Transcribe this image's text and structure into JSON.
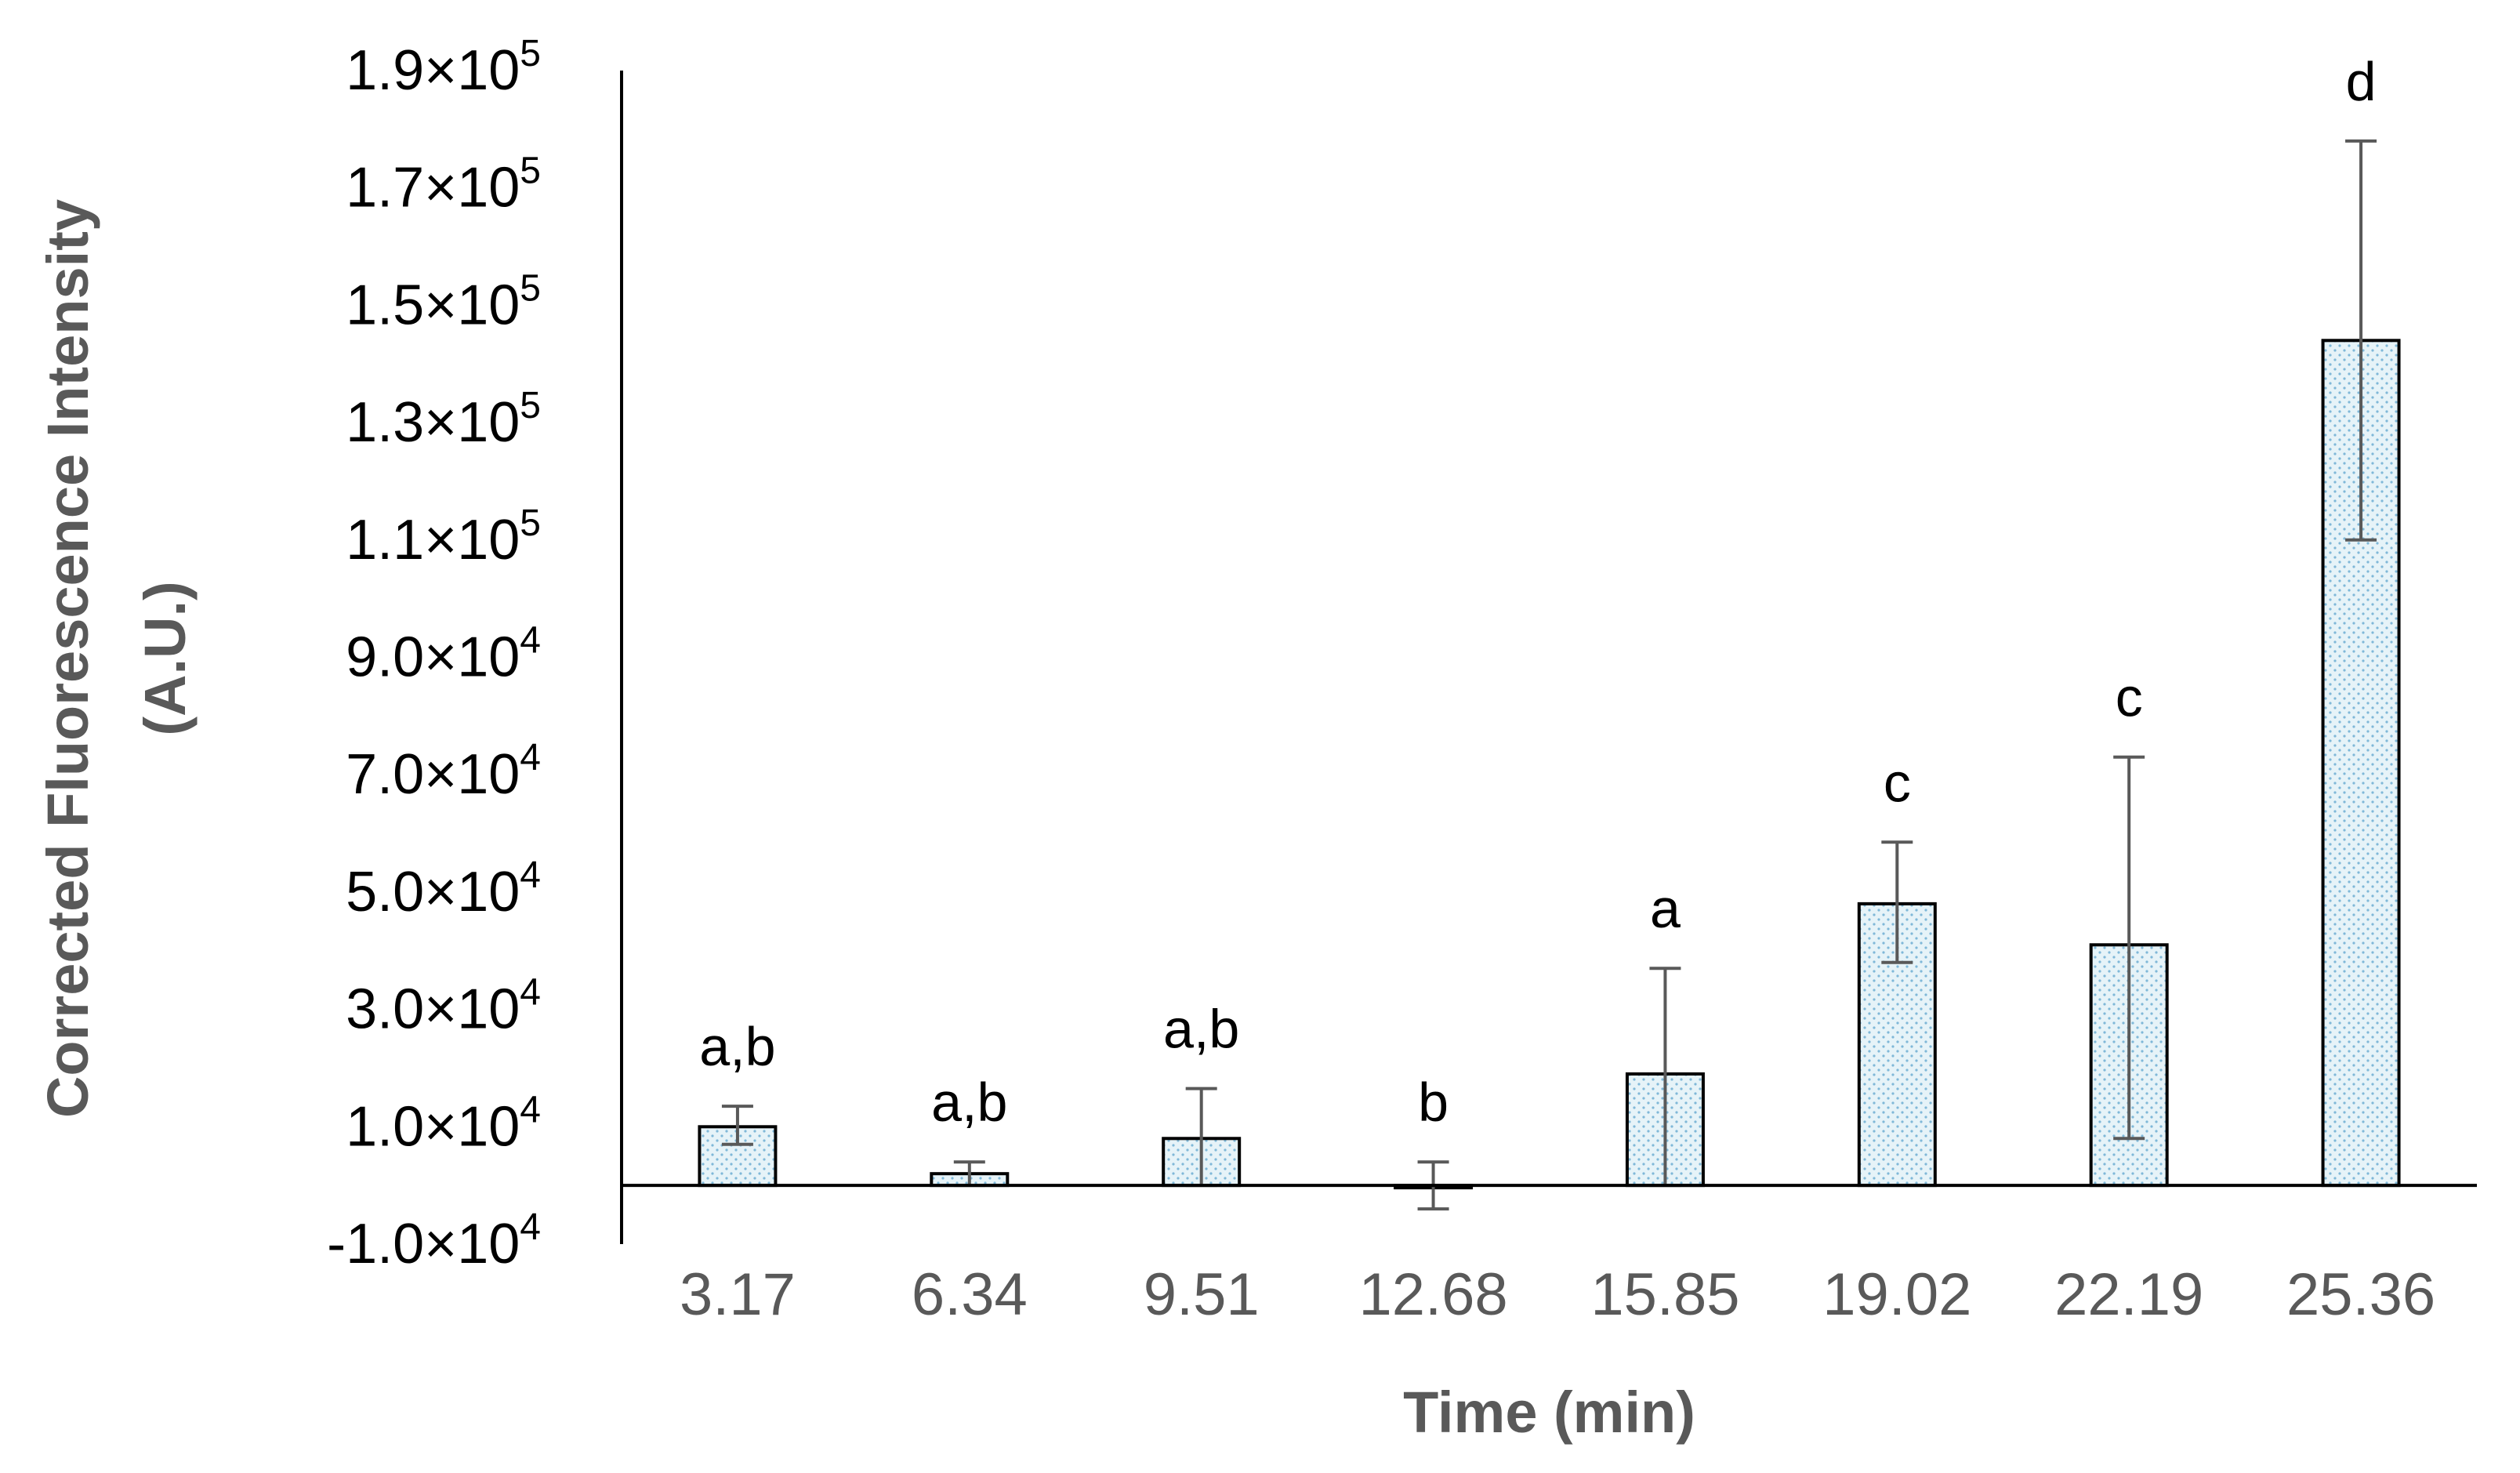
{
  "chart_data": {
    "type": "bar",
    "title": "",
    "xlabel": "Time (min)",
    "ylabel_lines": [
      "Corrected Fluorescence Intensity",
      "(A.U.)"
    ],
    "categories": [
      "3.17",
      "6.34",
      "9.51",
      "12.68",
      "15.85",
      "19.02",
      "22.19",
      "25.36"
    ],
    "values": [
      10000,
      2000,
      8000,
      0,
      19000,
      48000,
      41000,
      144000
    ],
    "error_low": [
      3000,
      2000,
      8000,
      4000,
      19000,
      10000,
      33000,
      34000
    ],
    "error_high": [
      3500,
      2000,
      8500,
      4000,
      18000,
      10500,
      32000,
      34000
    ],
    "significance_labels": [
      "a,b",
      "a,b",
      "a,b",
      "b",
      "a",
      "c",
      "c",
      "d"
    ],
    "ylim": [
      -10000,
      190000
    ],
    "yticks": [
      {
        "value": 190000,
        "mantissa": "1.9",
        "exponent": "5"
      },
      {
        "value": 170000,
        "mantissa": "1.7",
        "exponent": "5"
      },
      {
        "value": 150000,
        "mantissa": "1.5",
        "exponent": "5"
      },
      {
        "value": 130000,
        "mantissa": "1.3",
        "exponent": "5"
      },
      {
        "value": 110000,
        "mantissa": "1.1",
        "exponent": "5"
      },
      {
        "value": 90000,
        "mantissa": "9.0",
        "exponent": "4"
      },
      {
        "value": 70000,
        "mantissa": "7.0",
        "exponent": "4"
      },
      {
        "value": 50000,
        "mantissa": "5.0",
        "exponent": "4"
      },
      {
        "value": 30000,
        "mantissa": "3.0",
        "exponent": "4"
      },
      {
        "value": 10000,
        "mantissa": "1.0",
        "exponent": "4"
      },
      {
        "value": -10000,
        "mantissa": "-1.0",
        "exponent": "4"
      }
    ],
    "tick_separator": "×10",
    "grid": false,
    "bar_fill": "#e6f3f8",
    "bar_dot_color": "#7fb8d8",
    "bar_stroke": "#000000",
    "error_bar_color": "#595959",
    "axis_color": "#000000"
  }
}
